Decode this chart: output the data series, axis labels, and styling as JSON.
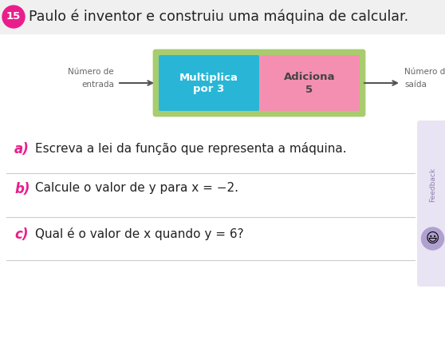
{
  "title": "Paulo é inventor e construiu uma máquina de calcular.",
  "number_badge": "15",
  "badge_color": "#e91e8c",
  "badge_text_color": "#ffffff",
  "outer_box_color": "#a8cc6e",
  "box1_color": "#29b6d6",
  "box1_line1": "Multiplica",
  "box1_line2": "por 3",
  "box2_color": "#f48fb1",
  "box2_line1": "Adiciona",
  "box2_line2": "5",
  "label_entrada_line1": "Número de",
  "label_entrada_line2": "entrada",
  "label_saida_line1": "Número de",
  "label_saida_line2": "saída",
  "label_color": "#666666",
  "arrow_color": "#555555",
  "q_a_label": "a)",
  "q_a_text": "Escreva a lei da função que representa a máquina.",
  "q_b_label": "b)",
  "q_b_text": "Calcule o valor de y para x = −2.",
  "q_c_label": "c)",
  "q_c_text": "Qual é o valor de x quando y = 6?",
  "label_color_bold": "#e91e8c",
  "line_color": "#cccccc",
  "bg_color": "#ffffff",
  "feedback_bg": "#e8e4f3",
  "top_bg": "#f0f0f0"
}
